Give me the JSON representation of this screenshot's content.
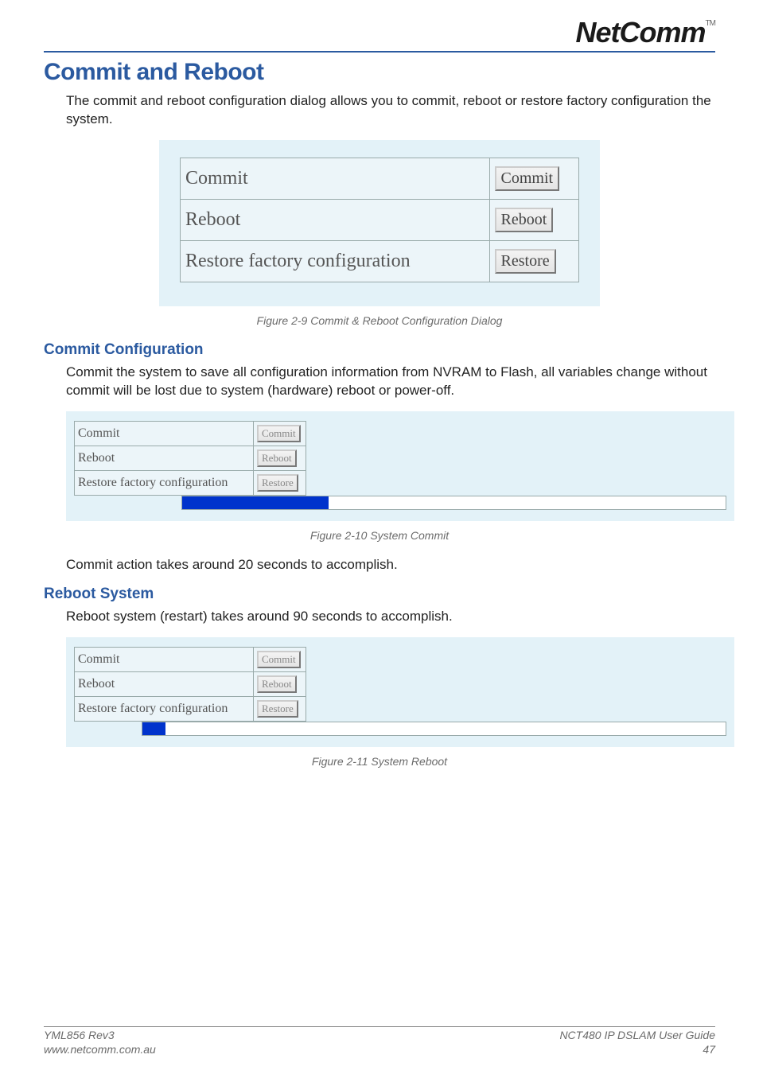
{
  "logo": {
    "text": "NetComm",
    "tm": "TM"
  },
  "h1": "Commit and Reboot",
  "intro": "The commit and reboot configuration dialog allows you to commit, reboot or restore factory configuration the system.",
  "dialog_large": {
    "bg": "#e3f2f8",
    "cell_bg": "#ecf5f9",
    "border": "#99aaaa",
    "rows": [
      {
        "label": "Commit",
        "button": "Commit"
      },
      {
        "label": "Reboot",
        "button": "Reboot"
      },
      {
        "label": "Restore factory configuration",
        "button": "Restore"
      }
    ]
  },
  "caption1": "Figure 2-9 Commit & Reboot Configuration Dialog",
  "commit": {
    "heading": "Commit Configuration",
    "text": "Commit the system to save all configuration information from NVRAM to Flash, all variables change without commit will be lost due to system (hardware) reboot or power-off.",
    "progress_pct": 27,
    "progress_color": "#0033cc",
    "track_color": "#ffffff"
  },
  "caption2": "Figure 2-10 System Commit",
  "commit_note": "Commit action takes around 20 seconds to accomplish.",
  "reboot": {
    "heading": "Reboot System",
    "text": "Reboot system (restart) takes around 90 seconds to accomplish.",
    "progress_pct": 4,
    "progress_color": "#0033cc",
    "track_color": "#ffffff"
  },
  "caption3": "Figure 2-11 System Reboot",
  "dialog_small_rows": [
    {
      "label": "Commit",
      "button": "Commit"
    },
    {
      "label": "Reboot",
      "button": "Reboot"
    },
    {
      "label": "Restore factory configuration",
      "button": "Restore"
    }
  ],
  "footer": {
    "left1": "YML856 Rev3",
    "left2": "www.netcomm.com.au",
    "right1": "NCT480 IP DSLAM User Guide",
    "right2": "47"
  },
  "colors": {
    "heading": "#2b5aa0",
    "caption": "#6b6b6b",
    "rule": "#2b5aa0"
  }
}
